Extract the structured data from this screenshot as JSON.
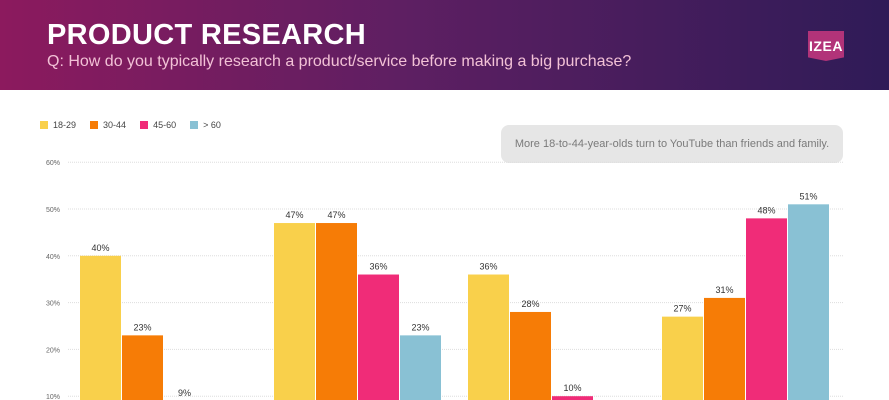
{
  "header": {
    "title": "PRODUCT RESEARCH",
    "subtitle": "Q: How do you typically research a product/service before making a big purchase?",
    "logo_text": "IZEA"
  },
  "callout": {
    "text": "More 18-to-44-year-olds turn to YouTube than friends and family."
  },
  "colors": {
    "header_start": "#8c1a5e",
    "header_end": "#2f1b57",
    "grid": "#dddddd"
  },
  "chart_data": {
    "type": "bar",
    "categories": [
      "",
      "",
      "",
      ""
    ],
    "ylim": [
      0,
      60
    ],
    "yticks": [
      "10%",
      "20%",
      "30%",
      "40%",
      "50%",
      "60%"
    ],
    "grid": true,
    "legend_position": "top-left",
    "series": [
      {
        "name": "18-29",
        "color": "#f9d04b",
        "values": [
          40,
          47,
          36,
          27
        ],
        "labels": [
          "40%",
          "47%",
          "36%",
          "27%"
        ]
      },
      {
        "name": "30-44",
        "color": "#f67c06",
        "values": [
          23,
          47,
          28,
          31
        ],
        "labels": [
          "23%",
          "47%",
          "28%",
          "31%"
        ]
      },
      {
        "name": "45-60",
        "color": "#f02c78",
        "values": [
          9,
          36,
          10,
          48
        ],
        "labels": [
          "9%",
          "36%",
          "10%",
          "48%"
        ]
      },
      {
        "name": "> 60",
        "color": "#89c1d4",
        "values": [
          null,
          23,
          null,
          51
        ],
        "labels": [
          "",
          "23%",
          "",
          "51%"
        ]
      }
    ]
  }
}
